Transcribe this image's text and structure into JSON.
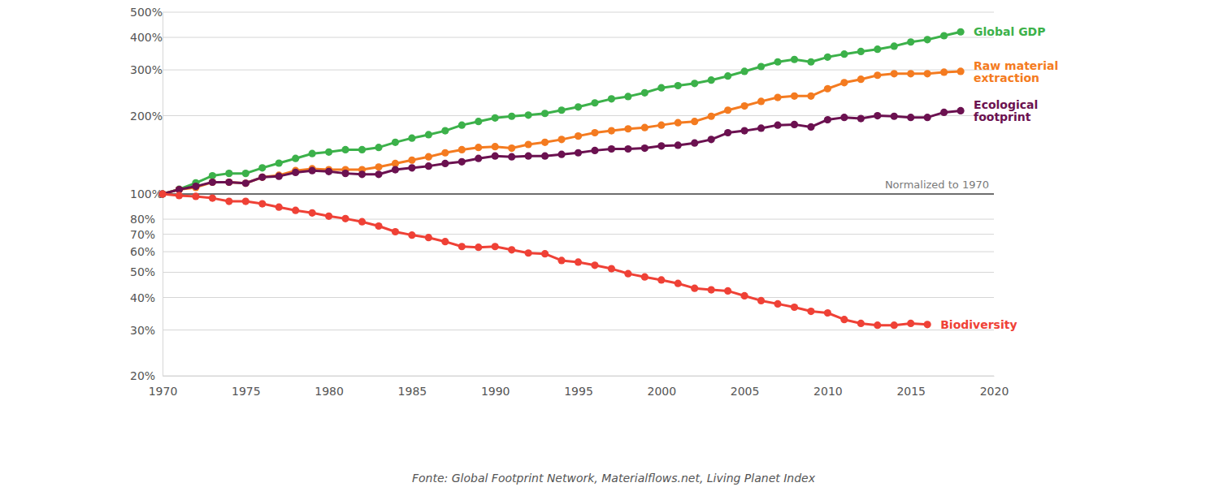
{
  "chart_data": {
    "type": "line",
    "log": "y",
    "grid": true,
    "marker": "circle",
    "x": [
      1970,
      1971,
      1972,
      1973,
      1974,
      1975,
      1976,
      1977,
      1978,
      1979,
      1980,
      1981,
      1982,
      1983,
      1984,
      1985,
      1986,
      1987,
      1988,
      1989,
      1990,
      1991,
      1992,
      1993,
      1994,
      1995,
      1996,
      1997,
      1998,
      1999,
      2000,
      2001,
      2002,
      2003,
      2004,
      2005,
      2006,
      2007,
      2008,
      2009,
      2010,
      2011,
      2012,
      2013,
      2014,
      2015,
      2016,
      2017,
      2018
    ],
    "xlim": [
      1970,
      2020
    ],
    "xticks": [
      1970,
      1975,
      1980,
      1985,
      1990,
      1995,
      2000,
      2005,
      2010,
      2015,
      2020
    ],
    "ylim": [
      20,
      500
    ],
    "yticks": [
      {
        "value": 20,
        "label": "20%"
      },
      {
        "value": 30,
        "label": "30%"
      },
      {
        "value": 40,
        "label": "40%"
      },
      {
        "value": 50,
        "label": "50%"
      },
      {
        "value": 60,
        "label": "60%"
      },
      {
        "value": 70,
        "label": "70%"
      },
      {
        "value": 80,
        "label": "80%"
      },
      {
        "value": 100,
        "label": "100%"
      },
      {
        "value": 200,
        "label": "200%"
      },
      {
        "value": 300,
        "label": "300%"
      },
      {
        "value": 400,
        "label": "400%"
      },
      {
        "value": 500,
        "label": "500%"
      }
    ],
    "annotations": [
      {
        "text": "Normalized to 1970",
        "y": 100
      }
    ],
    "source": "Fonte: Global Footprint Network, Materialflows.net, Living Planet Index",
    "series": [
      {
        "name": "Global GDP",
        "color": "#3cb14a",
        "values": [
          100,
          104.3,
          110.3,
          117.5,
          120,
          120,
          126,
          131.4,
          137,
          143,
          145,
          148,
          148,
          151,
          158,
          164,
          169,
          175,
          184,
          190,
          196,
          199,
          201,
          204,
          210,
          216,
          224,
          232,
          237,
          245,
          256,
          261,
          266,
          274,
          284,
          296,
          309,
          322,
          329,
          322,
          336,
          345,
          353,
          360,
          370,
          384,
          392,
          406,
          420
        ]
      },
      {
        "name": "Raw material extraction",
        "color": "#f47b20",
        "values": [
          100,
          104,
          106,
          111,
          111,
          110,
          116,
          118,
          123,
          125,
          124,
          124,
          124,
          127,
          131,
          135,
          139,
          144,
          148,
          151,
          152,
          150,
          155,
          158,
          162,
          167,
          172,
          175,
          178,
          180,
          184,
          188,
          190,
          199,
          210,
          218,
          227,
          235,
          238,
          238,
          254,
          268,
          276,
          286,
          290,
          290,
          290,
          294,
          296
        ]
      },
      {
        "name": "Ecological footprint",
        "color": "#6b1150",
        "values": [
          100,
          104,
          107,
          111,
          111,
          110,
          116,
          117,
          121,
          123,
          122,
          120,
          119,
          119,
          124,
          126,
          128,
          131,
          133,
          137,
          140,
          139,
          140,
          140,
          142,
          144,
          147,
          149,
          149,
          150,
          153,
          154,
          157,
          162,
          172,
          175,
          179,
          184,
          185,
          181,
          193,
          197,
          195,
          200,
          199,
          197,
          197,
          206,
          209
        ]
      },
      {
        "name": "Biodiversity",
        "color": "#ef4136",
        "values": [
          100,
          98.6,
          97.9,
          96.4,
          93.7,
          93.7,
          91.7,
          89.0,
          86.5,
          84.6,
          82.2,
          80.4,
          78.2,
          75.3,
          71.6,
          69.5,
          68.0,
          65.6,
          62.8,
          62.4,
          62.8,
          61.0,
          59.3,
          58.9,
          55.5,
          54.7,
          53.2,
          51.6,
          49.4,
          48.0,
          46.7,
          45.3,
          43.4,
          42.8,
          42.4,
          40.6,
          38.9,
          37.8,
          36.7,
          35.4,
          34.9,
          32.9,
          31.8,
          31.3,
          31.3,
          31.8,
          31.5,
          null,
          null
        ]
      }
    ]
  }
}
